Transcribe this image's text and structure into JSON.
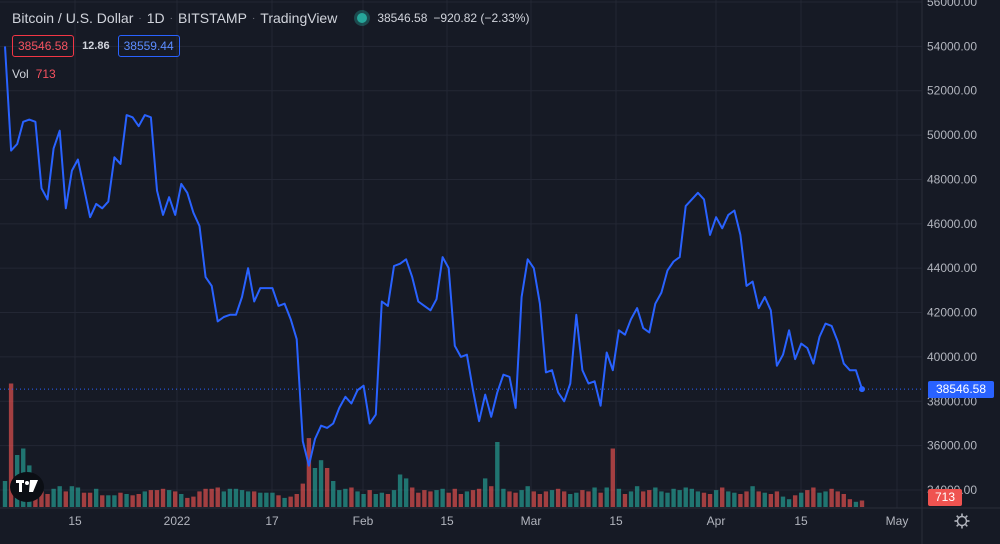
{
  "legend": {
    "symbol": "Bitcoin / U.S. Dollar",
    "interval": "1D",
    "exchange": "BITSTAMP",
    "platform": "TradingView",
    "last_price": "38546.58",
    "change": "−920.82 (−2.33%)",
    "bid": "38546.58",
    "spread": "12.86",
    "ask": "38559.44",
    "volume_label": "Vol",
    "volume_value": "713"
  },
  "price_axis": {
    "ticks": [
      "56000.00",
      "54000.00",
      "52000.00",
      "50000.00",
      "48000.00",
      "46000.00",
      "44000.00",
      "42000.00",
      "40000.00",
      "38000.00",
      "36000.00",
      "34000.00"
    ],
    "last_price_tag": "38546.58",
    "volume_tag": "713"
  },
  "time_axis": {
    "ticks": [
      "15",
      "2022",
      "17",
      "Feb",
      "15",
      "Mar",
      "15",
      "Apr",
      "15",
      "May"
    ]
  },
  "colors": {
    "background": "#161a25",
    "line": "#2962ff",
    "volume_up": "#26a69a",
    "volume_down": "#ef5350",
    "grid": "#232734"
  },
  "icons": [
    "tradingview-logo-icon",
    "settings-icon"
  ],
  "chart_data": {
    "type": "line",
    "title": "Bitcoin / U.S. Dollar · 1D · BITSTAMP",
    "x_unit": "day index",
    "close": [
      54000,
      49300,
      49600,
      50600,
      50700,
      50600,
      47600,
      47100,
      49400,
      50200,
      46700,
      48400,
      48900,
      47600,
      46300,
      46900,
      46700,
      47000,
      49000,
      48700,
      50900,
      50800,
      50400,
      50900,
      50800,
      47500,
      46400,
      47200,
      46400,
      47800,
      47400,
      46500,
      45900,
      43600,
      43200,
      41600,
      41800,
      41900,
      41900,
      42700,
      44000,
      42500,
      43100,
      43100,
      43100,
      42300,
      42400,
      41700,
      40800,
      36200,
      35100,
      36300,
      36900,
      36800,
      37000,
      37700,
      38200,
      37900,
      38500,
      38700,
      37000,
      37400,
      42500,
      42300,
      44100,
      44200,
      44400,
      43600,
      42500,
      42300,
      42100,
      42600,
      44500,
      44000,
      40500,
      40000,
      40100,
      38500,
      37100,
      38300,
      37300,
      38400,
      39200,
      39100,
      37700,
      42700,
      44400,
      44000,
      42400,
      39300,
      39400,
      38400,
      38000,
      38800,
      41900,
      39400,
      38800,
      38900,
      37800,
      40200,
      39400,
      41200,
      41000,
      41700,
      42200,
      41300,
      41100,
      42400,
      42900,
      43900,
      44300,
      44500,
      46800,
      47100,
      47400,
      47100,
      45500,
      46300,
      45800,
      46400,
      46600,
      45500,
      43200,
      43400,
      42200,
      42700,
      42100,
      39600,
      40100,
      41200,
      39900,
      40600,
      40400,
      39700,
      40900,
      41500,
      41400,
      40700,
      39700,
      39400,
      39400,
      38546.58
    ],
    "volume": [
      20,
      95,
      40,
      45,
      32,
      14,
      12,
      10,
      14,
      16,
      12,
      16,
      15,
      11,
      11,
      14,
      9,
      9,
      9,
      11,
      10,
      9,
      10,
      12,
      13,
      13,
      14,
      13,
      12,
      10,
      7,
      8,
      12,
      14,
      14,
      15,
      12,
      14,
      14,
      13,
      12,
      12,
      11,
      11,
      11,
      9,
      7,
      8,
      10,
      18,
      53,
      30,
      36,
      30,
      20,
      13,
      14,
      15,
      12,
      10,
      13,
      10,
      11,
      10,
      13,
      25,
      22,
      15,
      11,
      13,
      12,
      13,
      14,
      11,
      14,
      10,
      12,
      13,
      14,
      22,
      16,
      50,
      14,
      12,
      11,
      13,
      16,
      12,
      10,
      12,
      13,
      14,
      12,
      10,
      11,
      13,
      12,
      15,
      11,
      15,
      45,
      14,
      10,
      12,
      16,
      12,
      13,
      15,
      12,
      11,
      14,
      13,
      15,
      14,
      12,
      11,
      10,
      13,
      15,
      12,
      11,
      10,
      12,
      16,
      12,
      11,
      10,
      12,
      8,
      6,
      9,
      11,
      13,
      15,
      11,
      12,
      14,
      12,
      10,
      6,
      4,
      5
    ],
    "ylim": [
      33000,
      56500
    ],
    "price_ticks": [
      56000,
      54000,
      52000,
      50000,
      48000,
      46000,
      44000,
      42000,
      40000,
      38000,
      36000,
      34000
    ],
    "last_price": 38546.58
  }
}
